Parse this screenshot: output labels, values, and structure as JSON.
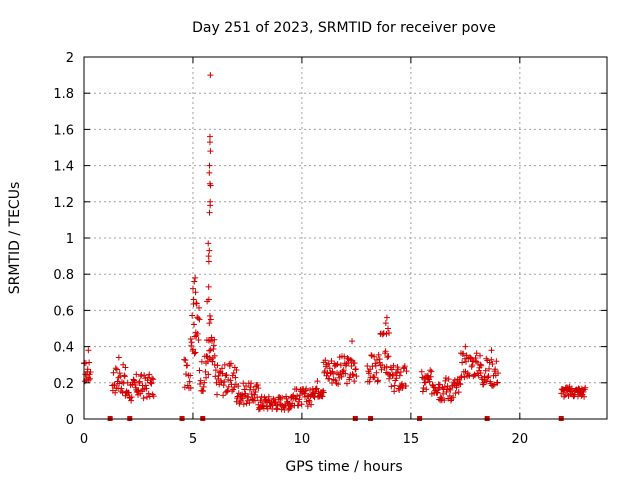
{
  "chart_data": {
    "type": "scatter",
    "title": "Day 251 of 2023, SRMTID for receiver pove",
    "xlabel": "GPS time / hours",
    "ylabel": "SRMTID / TECUs",
    "xlim": [
      0,
      24
    ],
    "ylim": [
      0,
      2
    ],
    "grid": true,
    "marker": "+",
    "color": "#d40000",
    "x_ticks": [
      "0",
      "5",
      "10",
      "15",
      "20"
    ],
    "x_tick_values": [
      0,
      5,
      10,
      15,
      20
    ],
    "y_ticks": [
      "0",
      "0.2",
      "0.4",
      "0.6",
      "0.8",
      "1",
      "1.2",
      "1.4",
      "1.6",
      "1.8",
      "2"
    ],
    "y_tick_values": [
      0,
      0.2,
      0.4,
      0.6,
      0.8,
      1.0,
      1.2,
      1.4,
      1.6,
      1.8,
      2.0
    ],
    "segments": [
      {
        "x0": 0.0,
        "x1": 0.3,
        "base": 0.26,
        "spread": 0.06,
        "density": 50
      },
      {
        "x0": 1.3,
        "x1": 1.9,
        "base": 0.22,
        "spread": 0.08,
        "density": 40
      },
      {
        "x0": 1.9,
        "x1": 2.4,
        "base": 0.16,
        "spread": 0.07,
        "density": 40
      },
      {
        "x0": 2.4,
        "x1": 3.2,
        "base": 0.18,
        "spread": 0.07,
        "density": 40
      },
      {
        "x0": 4.6,
        "x1": 4.9,
        "base": 0.25,
        "spread": 0.08,
        "density": 40
      },
      {
        "x0": 4.9,
        "x1": 5.3,
        "base": 0.5,
        "spread": 0.15,
        "density": 50
      },
      {
        "x0": 5.3,
        "x1": 5.6,
        "base": 0.25,
        "spread": 0.1,
        "density": 40
      },
      {
        "x0": 5.6,
        "x1": 6.0,
        "base": 0.35,
        "spread": 0.12,
        "density": 50
      },
      {
        "x0": 6.0,
        "x1": 7.0,
        "base": 0.22,
        "spread": 0.09,
        "density": 40
      },
      {
        "x0": 7.0,
        "x1": 8.0,
        "base": 0.14,
        "spread": 0.06,
        "density": 40
      },
      {
        "x0": 8.0,
        "x1": 9.5,
        "base": 0.09,
        "spread": 0.04,
        "density": 40
      },
      {
        "x0": 9.5,
        "x1": 10.5,
        "base": 0.12,
        "spread": 0.05,
        "density": 40
      },
      {
        "x0": 10.5,
        "x1": 11.0,
        "base": 0.17,
        "spread": 0.05,
        "density": 40
      },
      {
        "x0": 11.0,
        "x1": 12.5,
        "base": 0.27,
        "spread": 0.08,
        "density": 40
      },
      {
        "x0": 13.0,
        "x1": 13.6,
        "base": 0.28,
        "spread": 0.08,
        "density": 40
      },
      {
        "x0": 13.6,
        "x1": 14.0,
        "base": 0.36,
        "spread": 0.12,
        "density": 40
      },
      {
        "x0": 14.0,
        "x1": 14.8,
        "base": 0.22,
        "spread": 0.08,
        "density": 40
      },
      {
        "x0": 15.5,
        "x1": 16.3,
        "base": 0.2,
        "spread": 0.07,
        "density": 40
      },
      {
        "x0": 16.3,
        "x1": 17.3,
        "base": 0.17,
        "spread": 0.07,
        "density": 40
      },
      {
        "x0": 17.3,
        "x1": 18.2,
        "base": 0.3,
        "spread": 0.07,
        "density": 40
      },
      {
        "x0": 18.2,
        "x1": 19.0,
        "base": 0.26,
        "spread": 0.08,
        "density": 40
      },
      {
        "x0": 21.9,
        "x1": 23.0,
        "base": 0.15,
        "spread": 0.03,
        "density": 40
      }
    ],
    "peaks": [
      {
        "x": 5.8,
        "y": 1.9
      },
      {
        "x": 5.78,
        "y": 1.56
      },
      {
        "x": 5.78,
        "y": 1.53
      },
      {
        "x": 5.8,
        "y": 1.48
      },
      {
        "x": 5.76,
        "y": 1.4
      },
      {
        "x": 5.75,
        "y": 1.36
      },
      {
        "x": 5.78,
        "y": 1.3
      },
      {
        "x": 5.81,
        "y": 1.29
      },
      {
        "x": 5.79,
        "y": 1.2
      },
      {
        "x": 5.79,
        "y": 1.18
      },
      {
        "x": 5.76,
        "y": 1.14
      },
      {
        "x": 5.7,
        "y": 0.97
      },
      {
        "x": 5.75,
        "y": 0.93
      },
      {
        "x": 5.72,
        "y": 0.9
      },
      {
        "x": 5.73,
        "y": 0.87
      },
      {
        "x": 5.72,
        "y": 0.73
      },
      {
        "x": 5.73,
        "y": 0.66
      },
      {
        "x": 5.65,
        "y": 0.65
      },
      {
        "x": 5.78,
        "y": 0.57
      },
      {
        "x": 5.82,
        "y": 0.55
      },
      {
        "x": 5.75,
        "y": 0.53
      },
      {
        "x": 5.1,
        "y": 0.78
      },
      {
        "x": 5.06,
        "y": 0.76
      },
      {
        "x": 5.0,
        "y": 0.72
      },
      {
        "x": 5.12,
        "y": 0.7
      },
      {
        "x": 5.03,
        "y": 0.66
      },
      {
        "x": 5.15,
        "y": 0.64
      },
      {
        "x": 13.9,
        "y": 0.56
      },
      {
        "x": 13.85,
        "y": 0.53
      },
      {
        "x": 13.95,
        "y": 0.5
      },
      {
        "x": 13.88,
        "y": 0.47
      },
      {
        "x": 0.2,
        "y": 0.38
      },
      {
        "x": 1.6,
        "y": 0.34
      },
      {
        "x": 12.3,
        "y": 0.43
      },
      {
        "x": 18.7,
        "y": 0.38
      },
      {
        "x": 17.5,
        "y": 0.4
      }
    ],
    "gap_markers": [
      1.2,
      2.1,
      4.5,
      5.45,
      12.45,
      13.15,
      15.4,
      18.5,
      21.9
    ]
  }
}
